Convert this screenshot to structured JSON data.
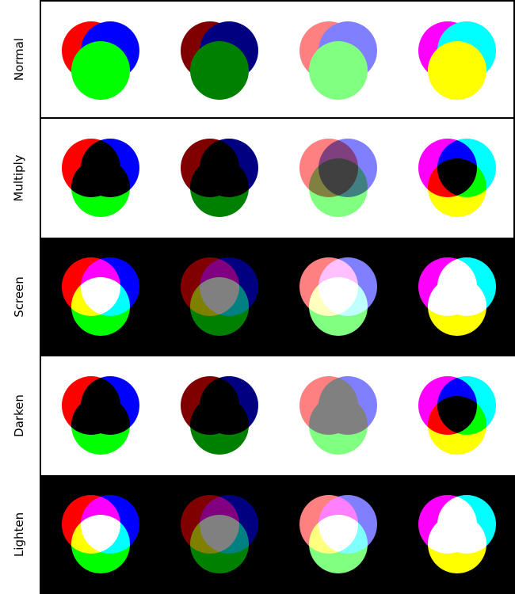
{
  "rows": [
    {
      "label": "Normal",
      "mode": "normal",
      "background": "#ffffff"
    },
    {
      "label": "Multiply",
      "mode": "multiply",
      "background": "#ffffff"
    },
    {
      "label": "Screen",
      "mode": "screen",
      "background": "#000000"
    },
    {
      "label": "Darken",
      "mode": "darken",
      "background": "#ffffff"
    },
    {
      "label": "Lighten",
      "mode": "lighten",
      "background": "#000000"
    }
  ],
  "color_sets": [
    {
      "name": "primary",
      "circles": [
        "#ff0000",
        "#0000ff",
        "#00ff00"
      ]
    },
    {
      "name": "dark",
      "circles": [
        "#800000",
        "#000080",
        "#008000"
      ]
    },
    {
      "name": "light",
      "circles": [
        "#ff8080",
        "#8080ff",
        "#80ff80"
      ]
    },
    {
      "name": "secondary",
      "circles": [
        "#ff00ff",
        "#00ffff",
        "#ffff00"
      ]
    }
  ]
}
